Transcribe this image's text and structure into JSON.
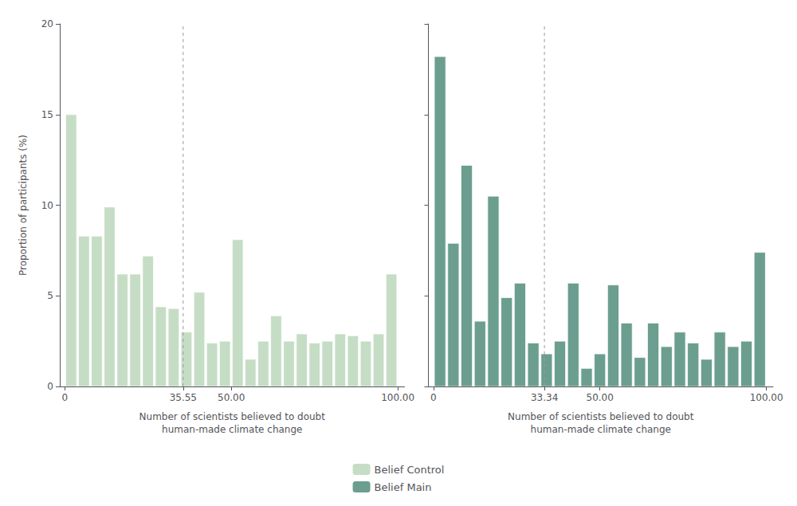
{
  "chart_data": [
    {
      "type": "histogram",
      "xlabel": "Number of scientists believed to doubt\nhuman-made climate change",
      "ylabel": "Proportion of participants (%)",
      "bins": [
        0,
        3.846153846,
        7.692307692,
        11.538461538,
        15.384615385,
        19.230769231,
        23.076923077,
        26.923076923,
        30.769230769,
        34.615384615,
        38.461538462,
        42.307692308,
        46.153846154,
        50,
        53.846153846,
        57.692307692,
        61.538461538,
        65.384615385,
        69.230769231,
        73.076923077,
        76.923076923,
        80.769230769,
        84.615384615,
        88.461538462,
        92.307692308,
        96.153846154,
        100
      ],
      "series": [
        {
          "name": "Belief Control",
          "color": "#c5ddc5",
          "values": [
            15.0,
            8.3,
            8.3,
            9.9,
            6.2,
            6.2,
            7.2,
            4.4,
            4.3,
            3.0,
            5.2,
            2.4,
            2.5,
            8.1,
            1.5,
            2.5,
            3.9,
            2.5,
            2.9,
            2.4,
            2.5,
            2.9,
            2.8,
            2.5,
            2.9,
            6.2
          ]
        }
      ],
      "vline": 35.55,
      "xlim": [
        -1.5,
        102
      ],
      "xticks": [
        0,
        35.55,
        {
          "value": 50.0,
          "label": "50.00"
        },
        {
          "value": 100.0,
          "label": "100.00"
        }
      ],
      "ylim": [
        0,
        20
      ],
      "yticks": [
        0,
        5,
        10,
        15,
        20
      ],
      "grid": false,
      "legend": "bottom"
    },
    {
      "type": "histogram",
      "xlabel": "Number of scientists believed to doubt\nhuman-made climate change",
      "bins": [
        0,
        4,
        8,
        12,
        16,
        20,
        24,
        28,
        32,
        36,
        40,
        44,
        48,
        52,
        56,
        60,
        64,
        68,
        72,
        76,
        80,
        84,
        88,
        92,
        96,
        100
      ],
      "series": [
        {
          "name": "Belief Main",
          "color": "#6b9e8e",
          "values": [
            18.2,
            7.9,
            12.2,
            3.6,
            10.5,
            4.9,
            5.7,
            2.4,
            1.8,
            2.5,
            5.7,
            1.0,
            1.8,
            5.6,
            3.5,
            1.6,
            3.5,
            2.2,
            3.0,
            2.4,
            1.5,
            3.0,
            2.2,
            2.5,
            7.4
          ]
        }
      ],
      "vline": 33.34,
      "xlim": [
        -1.5,
        102
      ],
      "xticks": [
        0,
        33.34,
        {
          "value": 50.0,
          "label": "50.00"
        },
        {
          "value": 100.0,
          "label": "100.00"
        }
      ],
      "ylim": [
        0,
        20
      ],
      "yticks": [
        0,
        5,
        10,
        15,
        20
      ],
      "tick_labels": "x",
      "grid": false,
      "legend": "bottom"
    }
  ]
}
